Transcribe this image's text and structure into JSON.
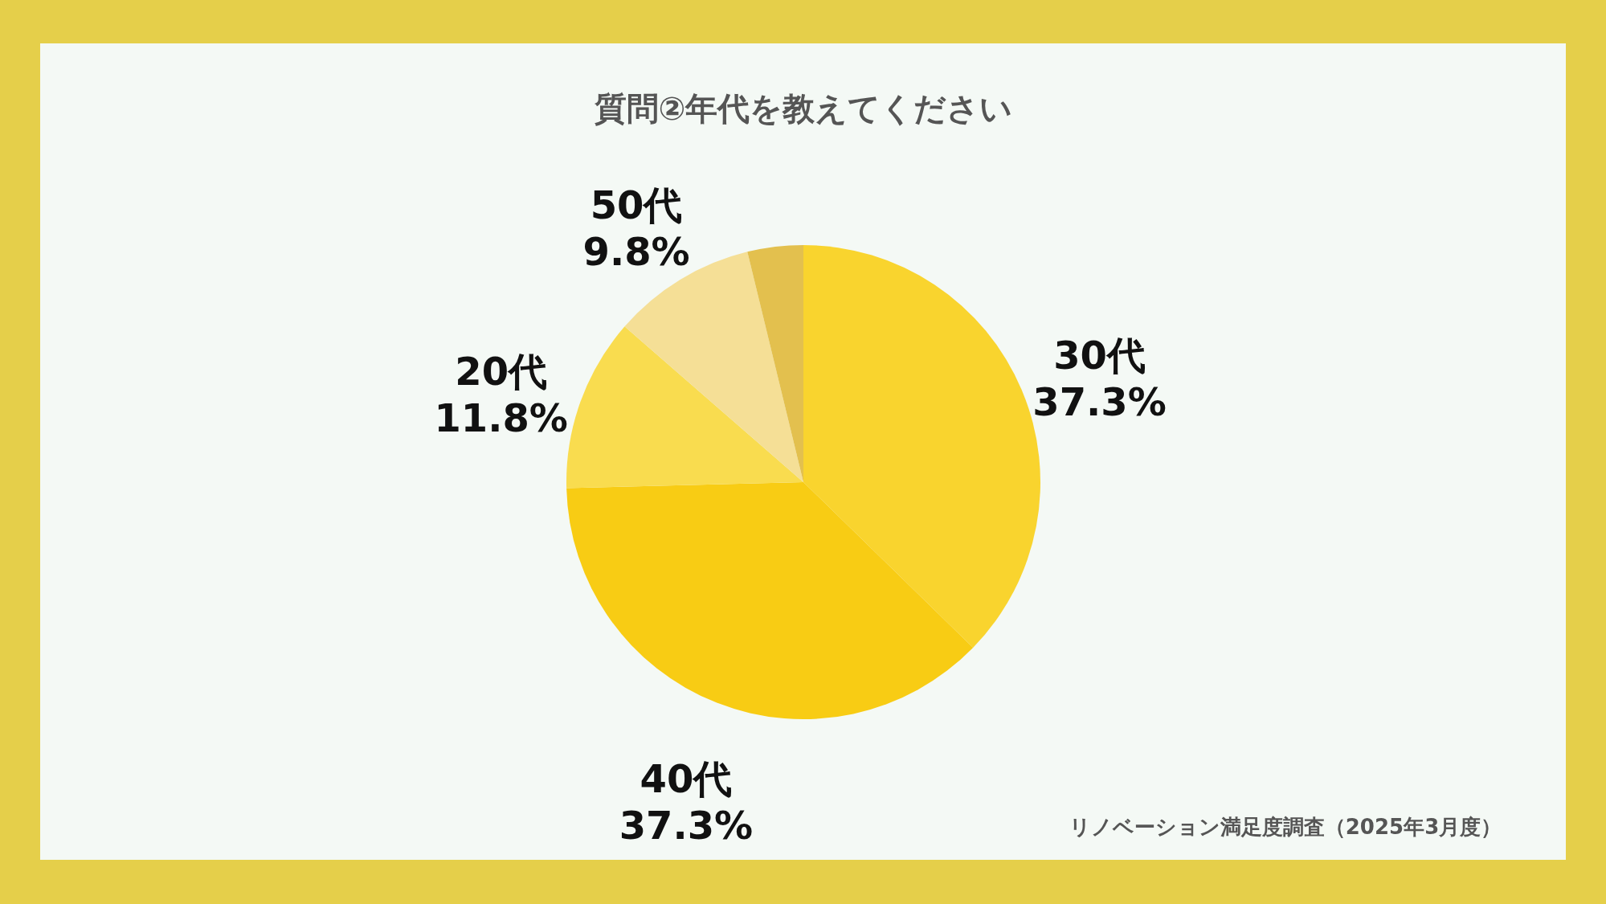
{
  "chart_data": {
    "type": "pie",
    "title": "質問②年代を教えてください",
    "categories": [
      "30代",
      "40代",
      "20代",
      "50代",
      null
    ],
    "values": [
      37.3,
      37.3,
      11.8,
      9.8,
      3.8
    ],
    "value_labels": [
      "37.3%",
      "37.3%",
      "11.8%",
      "9.8%",
      null
    ],
    "colors": [
      "#f9d42e",
      "#f8cc14",
      "#f9dc4f",
      "#f5df96",
      "#e3c04e"
    ],
    "annotations": [
      "リノベーション満足度調査（2025年3月度）"
    ]
  }
}
